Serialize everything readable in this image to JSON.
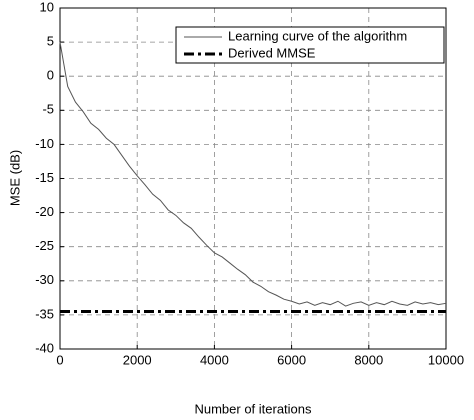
{
  "chart_data": {
    "type": "line",
    "xlabel": "Number of iterations",
    "ylabel": "MSE (dB)",
    "xlim": [
      0,
      10000
    ],
    "ylim": [
      -40,
      10
    ],
    "xticks": [
      0,
      2000,
      4000,
      6000,
      8000,
      10000
    ],
    "yticks": [
      -40,
      -35,
      -30,
      -25,
      -20,
      -15,
      -10,
      -5,
      0,
      5,
      10
    ],
    "grid": true,
    "legend": "upper right",
    "series": [
      {
        "name": "Learning curve of the algorithm",
        "color": "#555555",
        "style": "solid",
        "x": [
          0,
          200,
          400,
          600,
          800,
          1000,
          1200,
          1400,
          1600,
          1800,
          2000,
          2200,
          2400,
          2600,
          2800,
          3000,
          3200,
          3400,
          3600,
          3800,
          4000,
          4200,
          4400,
          4600,
          4800,
          5000,
          5200,
          5400,
          5600,
          5800,
          6000,
          6200,
          6400,
          6600,
          6800,
          7000,
          7200,
          7400,
          7600,
          7800,
          8000,
          8200,
          8400,
          8600,
          8800,
          9000,
          9200,
          9400,
          9600,
          9800,
          10000
        ],
        "values": [
          5,
          -1.5,
          -3.8,
          -5.2,
          -6.9,
          -7.8,
          -9.1,
          -10.0,
          -11.6,
          -13.2,
          -14.6,
          -15.9,
          -17.3,
          -18.2,
          -19.6,
          -20.4,
          -21.5,
          -22.3,
          -23.6,
          -24.8,
          -25.9,
          -26.5,
          -27.4,
          -28.3,
          -29.1,
          -30.2,
          -30.8,
          -31.6,
          -32.1,
          -32.7,
          -33.0,
          -33.4,
          -33.1,
          -33.6,
          -33.2,
          -33.5,
          -33.0,
          -33.7,
          -33.3,
          -33.1,
          -33.6,
          -33.2,
          -33.5,
          -33.0,
          -33.4,
          -33.6,
          -33.1,
          -33.4,
          -33.2,
          -33.5,
          -33.3
        ]
      },
      {
        "name": "Derived MMSE",
        "color": "#000000",
        "style": "dashdot",
        "x": [
          0,
          10000
        ],
        "values": [
          -34.5,
          -34.5
        ]
      }
    ]
  }
}
